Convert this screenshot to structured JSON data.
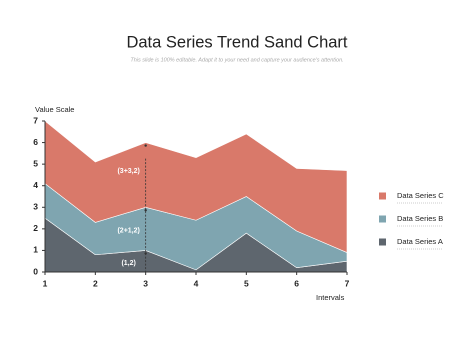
{
  "chart_data": {
    "type": "stacked-area",
    "title": "Data Series Trend Sand Chart",
    "subtitle": "This slide is 100% editable. Adapt it to your need and capture your audience's attention.",
    "ylabel": "Value Scale",
    "xlabel": "Intervals",
    "x": [
      1,
      2,
      3,
      4,
      5,
      6,
      7
    ],
    "xlim": [
      1,
      7
    ],
    "xticks": [
      1,
      2,
      3,
      4,
      5,
      6,
      7
    ],
    "ylim": [
      0,
      7
    ],
    "yticks": [
      0,
      1,
      2,
      3,
      4,
      5,
      6,
      7
    ],
    "series": [
      {
        "name": "Data Series A",
        "color": "#5e666e",
        "values": [
          2.5,
          0.8,
          1.0,
          0.1,
          1.8,
          0.2,
          0.5
        ]
      },
      {
        "name": "Data Series B",
        "color": "#7fa5b0",
        "values": [
          1.6,
          1.5,
          2.0,
          2.3,
          1.7,
          1.7,
          0.4
        ]
      },
      {
        "name": "Data Series C",
        "color": "#d9796a",
        "values": [
          2.9,
          2.8,
          3.0,
          2.9,
          2.9,
          2.9,
          3.8
        ]
      }
    ],
    "annotations": [
      "(1,2)",
      "(2+1,2)",
      "(3+3,2)"
    ]
  }
}
